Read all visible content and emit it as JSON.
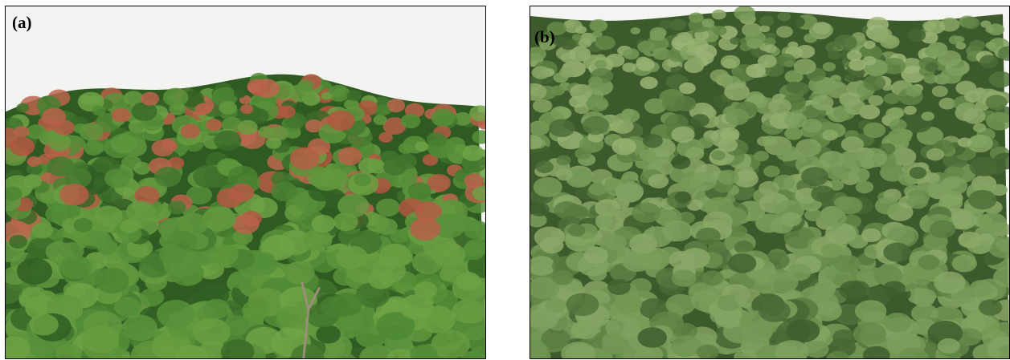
{
  "panels": [
    {
      "label": "(a)",
      "sky_color": "#f3f3f1",
      "foliage_dark": "#2f5a22",
      "foliage_mid": "#4f8a35",
      "foliage_light": "#7fae4e",
      "flower_color": "#b0563f"
    },
    {
      "label": "(b)",
      "sky_color": "#f4f4f2",
      "foliage_dark": "#3c5a2b",
      "foliage_mid": "#6f9451",
      "foliage_light": "#a3bb7c"
    }
  ]
}
